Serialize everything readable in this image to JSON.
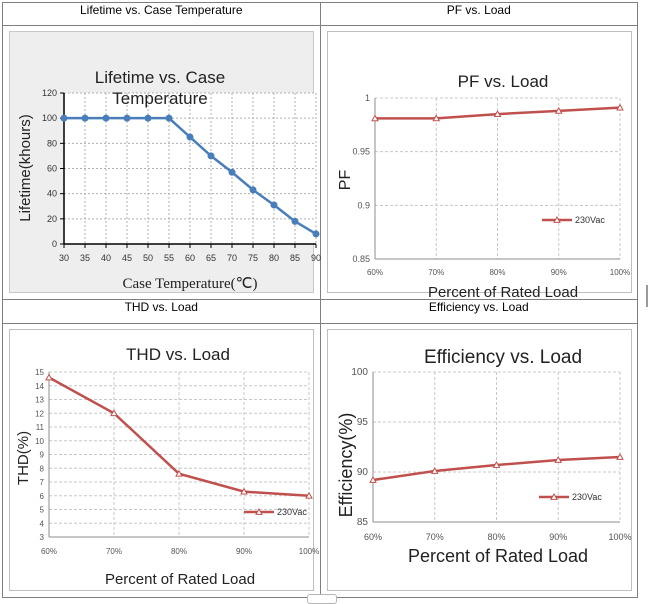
{
  "chart_data": [
    {
      "type": "line",
      "header": "Lifetime vs. Case Temperature",
      "title": "Lifetime vs. Case Temperature",
      "xlabel": "Case Temperature(℃)",
      "ylabel": "Lifetime(khours)",
      "x": [
        30,
        35,
        40,
        45,
        50,
        55,
        60,
        65,
        70,
        75,
        80,
        85,
        90
      ],
      "xticks": [
        "30",
        "35",
        "40",
        "45",
        "50",
        "55",
        "60",
        "65",
        "70",
        "75",
        "80",
        "85",
        "90"
      ],
      "ylim": [
        0,
        120
      ],
      "yticks": [
        "0",
        "20",
        "40",
        "60",
        "80",
        "100",
        "120"
      ],
      "series": [
        {
          "name": "",
          "color": "#4a7ebb",
          "values": [
            100,
            100,
            100,
            100,
            100,
            100,
            85,
            70,
            57,
            43,
            31,
            18,
            8
          ]
        }
      ],
      "grid": true,
      "background": "#eeeeee"
    },
    {
      "type": "line",
      "header": "PF vs. Load",
      "title": "PF vs. Load",
      "xlabel": "Percent of Rated Load",
      "ylabel": "PF",
      "categories": [
        "60%",
        "70%",
        "80%",
        "90%",
        "100%"
      ],
      "ylim": [
        0.85,
        1
      ],
      "yticks": [
        "0.85",
        "0.9",
        "0.95",
        "1"
      ],
      "series": [
        {
          "name": "230Vac",
          "color": "#c0504d",
          "values": [
            0.981,
            0.981,
            0.985,
            0.988,
            0.991
          ]
        }
      ],
      "legend": "bottom-right",
      "grid": true
    },
    {
      "type": "line",
      "header": "THD vs. Load",
      "title": "THD vs. Load",
      "xlabel": "Percent of Rated Load",
      "ylabel": "THD(%)",
      "categories": [
        "60%",
        "70%",
        "80%",
        "90%",
        "100%"
      ],
      "ylim": [
        3,
        15
      ],
      "yticks": [
        "3",
        "4",
        "5",
        "6",
        "7",
        "8",
        "9",
        "10",
        "11",
        "12",
        "13",
        "14",
        "15"
      ],
      "series": [
        {
          "name": "230Vac",
          "color": "#c0504d",
          "values": [
            14.6,
            12.0,
            7.6,
            6.3,
            6.0
          ]
        }
      ],
      "legend": "bottom-right",
      "grid": true
    },
    {
      "type": "line",
      "header": "Efficiency vs. Load",
      "title": "Efficiency vs. Load",
      "xlabel": "Percent of Rated Load",
      "ylabel": "Efficiency(%)",
      "categories": [
        "60%",
        "70%",
        "80%",
        "90%",
        "100%"
      ],
      "ylim": [
        85,
        100
      ],
      "yticks": [
        "85",
        "90",
        "95",
        "100"
      ],
      "series": [
        {
          "name": "230Vac",
          "color": "#c0504d",
          "values": [
            89.2,
            90.1,
            90.7,
            91.2,
            91.5
          ]
        }
      ],
      "legend": "bottom-right",
      "grid": true
    }
  ]
}
